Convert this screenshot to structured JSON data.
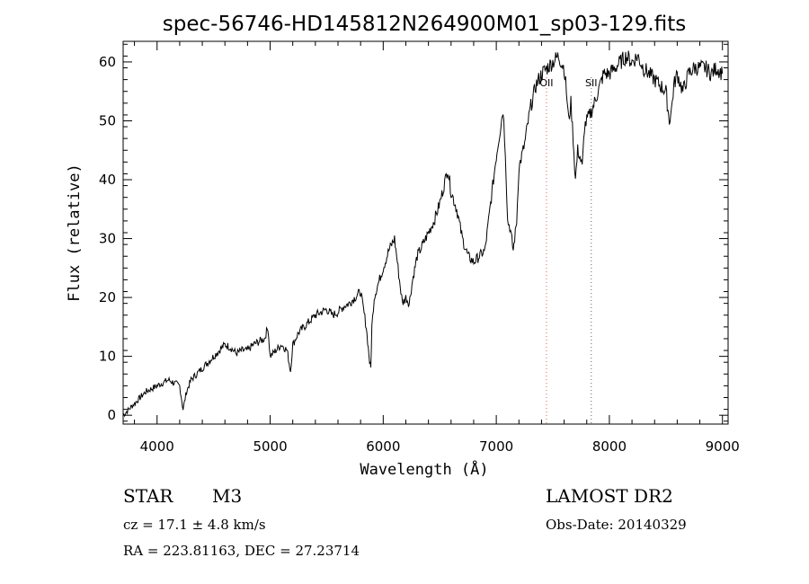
{
  "chart_data": {
    "type": "line",
    "title": "spec-56746-HD145812N264900M01_sp03-129.fits",
    "xlabel": "Wavelength (Å)",
    "ylabel": "Flux (relative)",
    "xlim": [
      3700,
      9050
    ],
    "ylim": [
      -1.5,
      63.5
    ],
    "x_ticks": [
      4000,
      5000,
      6000,
      7000,
      8000,
      9000
    ],
    "y_ticks": [
      0,
      10,
      20,
      30,
      40,
      50,
      60
    ],
    "grid": false,
    "line_color": "#000000",
    "series": [
      {
        "x": [
          3700,
          3750,
          3800,
          3850,
          3900,
          3950,
          4000,
          4050,
          4100,
          4150,
          4200,
          4230,
          4260,
          4300,
          4350,
          4400,
          4450,
          4500,
          4550,
          4600,
          4650,
          4700,
          4750,
          4800,
          4850,
          4900,
          4950,
          4980,
          5000,
          5050,
          5100,
          5150,
          5180,
          5200,
          5250,
          5300,
          5350,
          5400,
          5450,
          5500,
          5550,
          5600,
          5650,
          5700,
          5750,
          5800,
          5850,
          5880,
          5890,
          5900,
          5920,
          5950,
          6000,
          6050,
          6100,
          6150,
          6170,
          6200,
          6230,
          6260,
          6300,
          6350,
          6400,
          6450,
          6500,
          6550,
          6570,
          6600,
          6650,
          6700,
          6750,
          6800,
          6850,
          6900,
          6950,
          7000,
          7030,
          7060,
          7080,
          7100,
          7120,
          7150,
          7180,
          7200,
          7250,
          7300,
          7350,
          7400,
          7450,
          7500,
          7550,
          7600,
          7620,
          7640,
          7660,
          7680,
          7700,
          7720,
          7740,
          7760,
          7780,
          7800,
          7850,
          7900,
          7950,
          8000,
          8050,
          8100,
          8150,
          8200,
          8250,
          8300,
          8350,
          8400,
          8450,
          8500,
          8530,
          8550,
          8570,
          8600,
          8650,
          8700,
          8750,
          8800,
          8850,
          8900,
          8950,
          9000
        ],
        "y": [
          0,
          1,
          2,
          3,
          4,
          4.5,
          5,
          5.5,
          6,
          5.5,
          5,
          1,
          4,
          6,
          7,
          8,
          9,
          10,
          11,
          12,
          11.5,
          10.5,
          11,
          11,
          12,
          12.5,
          13,
          15,
          10,
          11,
          12,
          11,
          7.5,
          12,
          14,
          15,
          16,
          17,
          17.5,
          18,
          17,
          17.5,
          18.5,
          19,
          20,
          21,
          15,
          9,
          8,
          15,
          20,
          22,
          25,
          28,
          30,
          22,
          19,
          20,
          19,
          23,
          27,
          29,
          31,
          33,
          36,
          40,
          42,
          38,
          35,
          30,
          27,
          26,
          27,
          28,
          36,
          44,
          48,
          52,
          45,
          33,
          32,
          28,
          33,
          42,
          46,
          52,
          56,
          58,
          59,
          60,
          61,
          59,
          55,
          50,
          53,
          47,
          40,
          45,
          44,
          42,
          49,
          50,
          52,
          55,
          58,
          58,
          59,
          60,
          61,
          60,
          61,
          59,
          58,
          57,
          56,
          55,
          50,
          52,
          56,
          58,
          55,
          58,
          59,
          59,
          59,
          58,
          59,
          58
        ]
      }
    ],
    "line_annotations": [
      {
        "label": "OII",
        "x": 7444,
        "color": "#e06060"
      },
      {
        "label": "SII",
        "x": 7840,
        "color": "#606060"
      }
    ]
  },
  "info": {
    "object_class": "STAR",
    "subclass": "M3",
    "survey": "LAMOST DR2",
    "cz": "cz = 17.1 ± 4.8 km/s",
    "obs_date": "Obs-Date: 20140329",
    "coords": "RA = 223.81163, DEC =  27.23714"
  }
}
